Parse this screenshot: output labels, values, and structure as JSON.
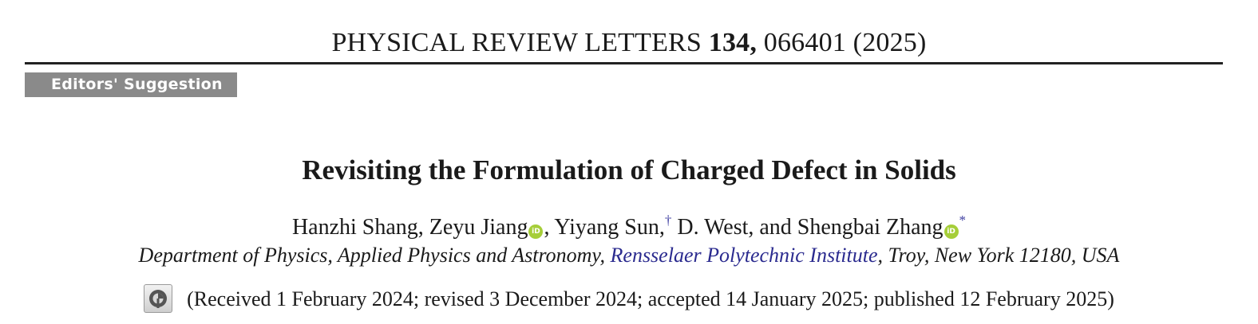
{
  "journal": {
    "name": "PHYSICAL REVIEW LETTERS",
    "volume": "134,",
    "article": "066401",
    "year": "(2025)"
  },
  "badge": "Editors' Suggestion",
  "title": "Revisiting the Formulation of Charged Defect in Solids",
  "authors": {
    "part1": "Hanzhi Shang, Zeyu Jiang",
    "part2": ", Yiyang Sun,",
    "dagger": "†",
    "part3": " D. West, and Shengbai Zhang",
    "star": "*",
    "orcid_label": "iD"
  },
  "affiliation": {
    "before": "Department of Physics, Applied Physics and Astronomy, ",
    "link": "Rensselaer Polytechnic Institute",
    "after": ", Troy, New York 12180, USA"
  },
  "dates": "(Received 1 February 2024; revised 3 December 2024; accepted 14 January 2025; published 12 February 2025)",
  "colors": {
    "orcid": "#a6ce39",
    "badge_bg": "#8a8a8a",
    "link": "#2b2b8f"
  },
  "icons": [
    "orcid-icon",
    "crossmark-icon"
  ]
}
